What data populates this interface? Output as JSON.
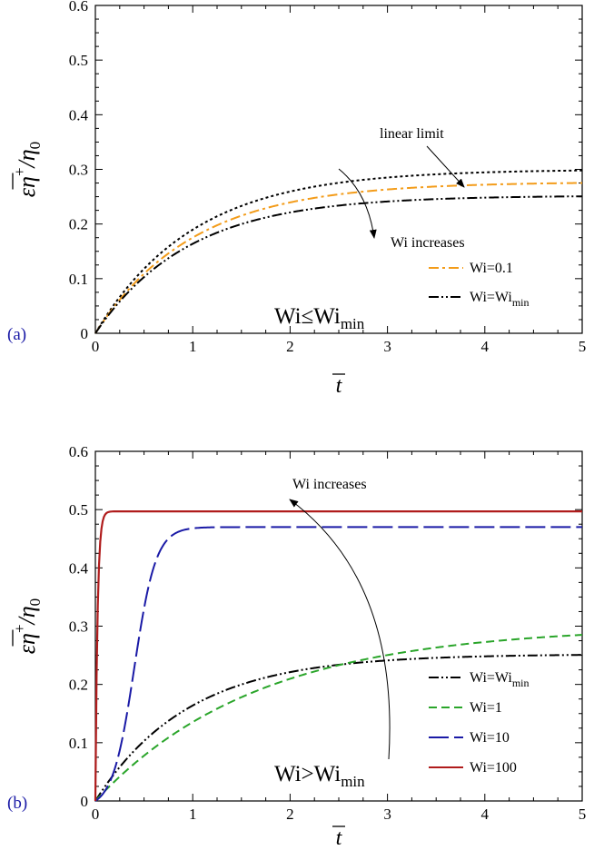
{
  "chart_data": [
    {
      "panel_label": "(a)",
      "type": "line",
      "xlabel": "t",
      "ylabel": {
        "main": "εη",
        "sup": "+",
        "div": "/η",
        "sub": "0"
      },
      "xlim": [
        0,
        5
      ],
      "ylim": [
        0,
        0.6
      ],
      "xticks": [
        "0",
        "1",
        "2",
        "3",
        "4",
        "5"
      ],
      "yticks": [
        "0",
        "0.1",
        "0.2",
        "0.3",
        "0.4",
        "0.5",
        "0.6"
      ],
      "region_label": {
        "main": "Wi≤Wi",
        "sub": "min"
      },
      "annotations": [
        {
          "text": "linear limit"
        },
        {
          "text": "Wi increases"
        }
      ],
      "series": [
        {
          "label": "",
          "color": "#000000",
          "dash": "dotted",
          "plateau": 0.3,
          "rate": 1.0,
          "x": [
            0,
            0.5,
            1,
            2,
            3,
            4,
            5
          ],
          "y": [
            0,
            0.118,
            0.19,
            0.259,
            0.285,
            0.295,
            0.298
          ]
        },
        {
          "label": "Wi=0.1",
          "color": "#f39c1a",
          "dash": "dashdot",
          "plateau": 0.277,
          "rate": 1.0,
          "x": [
            0,
            0.5,
            1,
            2,
            3,
            4,
            5
          ],
          "y": [
            0,
            0.109,
            0.175,
            0.239,
            0.263,
            0.272,
            0.275
          ]
        },
        {
          "label": {
            "main": "Wi=Wi",
            "sub": "min"
          },
          "color": "#000000",
          "dash": "dashdotdot",
          "plateau": 0.252,
          "rate": 1.05,
          "x": [
            0,
            0.5,
            1,
            2,
            3,
            4,
            5
          ],
          "y": [
            0,
            0.103,
            0.164,
            0.221,
            0.241,
            0.249,
            0.251
          ]
        }
      ]
    },
    {
      "panel_label": "(b)",
      "type": "line",
      "xlabel": "t",
      "ylabel": {
        "main": "εη",
        "sup": "+",
        "div": "/η",
        "sub": "0"
      },
      "xlim": [
        0,
        5
      ],
      "ylim": [
        0,
        0.6
      ],
      "xticks": [
        "0",
        "1",
        "2",
        "3",
        "4",
        "5"
      ],
      "yticks": [
        "0",
        "0.1",
        "0.2",
        "0.3",
        "0.4",
        "0.5",
        "0.6"
      ],
      "region_label": {
        "main": "Wi>Wi",
        "sub": "min"
      },
      "annotations": [
        {
          "text": "Wi increases"
        }
      ],
      "series": [
        {
          "label": {
            "main": "Wi=Wi",
            "sub": "min"
          },
          "color": "#000000",
          "dash": "dashdotdot",
          "plateau": 0.252,
          "rate": 1.05,
          "x": [
            0,
            0.5,
            1,
            2,
            3,
            4,
            5
          ],
          "y": [
            0,
            0.103,
            0.164,
            0.221,
            0.241,
            0.249,
            0.251
          ]
        },
        {
          "label": "Wi=1",
          "color": "#2aa52a",
          "dash": "dashed",
          "plateau": 0.3,
          "rate": 0.6,
          "x": [
            0,
            0.5,
            1,
            2,
            3,
            4,
            5
          ],
          "y": [
            0,
            0.078,
            0.135,
            0.21,
            0.25,
            0.272,
            0.285
          ]
        },
        {
          "label": "Wi=10",
          "color": "#1a1aa6",
          "dash": "longdash",
          "plateau": 0.47,
          "sigmoid": {
            "mid": 0.4,
            "k": 9
          },
          "x": [
            0,
            0.2,
            0.4,
            0.6,
            0.8,
            1,
            5
          ],
          "y": [
            0,
            0.06,
            0.235,
            0.41,
            0.46,
            0.47,
            0.47
          ]
        },
        {
          "label": "Wi=100",
          "color": "#b01c1c",
          "dash": "solid",
          "plateau": 0.497,
          "rate": 45,
          "x": [
            0,
            0.05,
            0.1,
            0.15,
            5
          ],
          "y": [
            0,
            0.44,
            0.494,
            0.497,
            0.497
          ]
        }
      ]
    }
  ]
}
